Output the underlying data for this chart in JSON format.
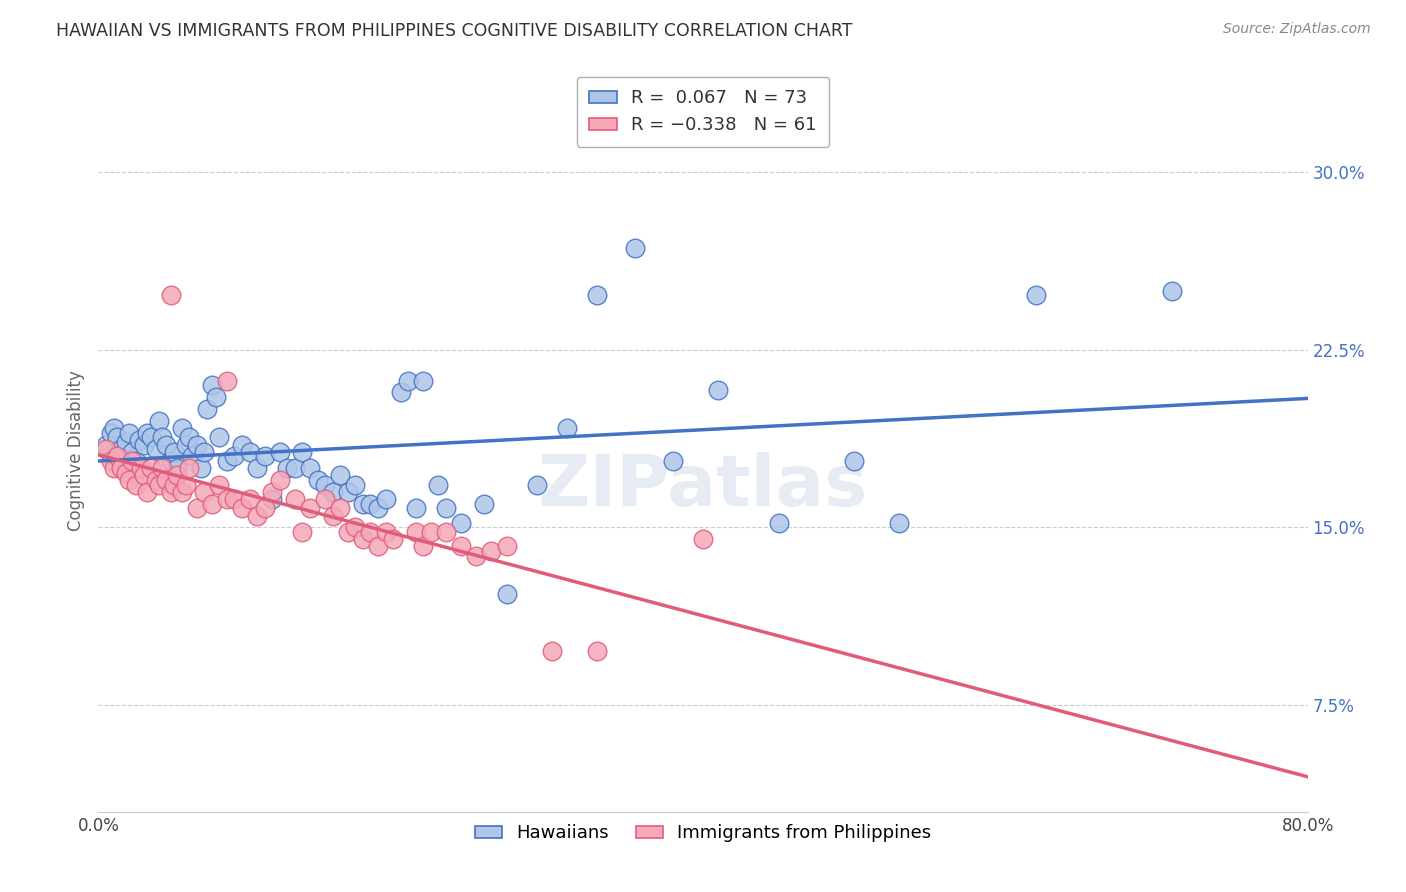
{
  "title": "HAWAIIAN VS IMMIGRANTS FROM PHILIPPINES COGNITIVE DISABILITY CORRELATION CHART",
  "source": "Source: ZipAtlas.com",
  "ylabel": "Cognitive Disability",
  "r_hawaiian": 0.067,
  "n_hawaiian": 73,
  "r_philippines": -0.338,
  "n_philippines": 61,
  "legend_label1": "Hawaiians",
  "legend_label2": "Immigrants from Philippines",
  "hawaiian_color": "#aec6e8",
  "philippines_color": "#f4a8b8",
  "hawaiian_line_color": "#4472C4",
  "philippines_line_color": "#E05C7A",
  "watermark": "ZIPatlas",
  "background_color": "#ffffff",
  "xlim": [
    0.0,
    0.8
  ],
  "ylim": [
    0.03,
    0.335
  ],
  "yticks": [
    0.075,
    0.15,
    0.225,
    0.3
  ],
  "ytick_labels": [
    "7.5%",
    "15.0%",
    "22.5%",
    "30.0%"
  ],
  "hawaiian_points_x": [
    0.005,
    0.008,
    0.01,
    0.012,
    0.015,
    0.018,
    0.02,
    0.022,
    0.025,
    0.027,
    0.03,
    0.032,
    0.035,
    0.038,
    0.04,
    0.042,
    0.045,
    0.048,
    0.05,
    0.052,
    0.055,
    0.058,
    0.06,
    0.062,
    0.065,
    0.068,
    0.07,
    0.072,
    0.075,
    0.078,
    0.08,
    0.085,
    0.09,
    0.095,
    0.1,
    0.105,
    0.11,
    0.115,
    0.12,
    0.125,
    0.13,
    0.135,
    0.14,
    0.145,
    0.15,
    0.155,
    0.16,
    0.165,
    0.17,
    0.175,
    0.18,
    0.185,
    0.19,
    0.2,
    0.205,
    0.21,
    0.215,
    0.225,
    0.23,
    0.24,
    0.255,
    0.27,
    0.29,
    0.31,
    0.33,
    0.355,
    0.38,
    0.41,
    0.45,
    0.5,
    0.53,
    0.62,
    0.71
  ],
  "hawaiian_points_y": [
    0.185,
    0.19,
    0.192,
    0.188,
    0.183,
    0.186,
    0.19,
    0.182,
    0.178,
    0.187,
    0.185,
    0.19,
    0.188,
    0.183,
    0.195,
    0.188,
    0.185,
    0.178,
    0.182,
    0.175,
    0.192,
    0.185,
    0.188,
    0.18,
    0.185,
    0.175,
    0.182,
    0.2,
    0.21,
    0.205,
    0.188,
    0.178,
    0.18,
    0.185,
    0.182,
    0.175,
    0.18,
    0.162,
    0.182,
    0.175,
    0.175,
    0.182,
    0.175,
    0.17,
    0.168,
    0.165,
    0.172,
    0.165,
    0.168,
    0.16,
    0.16,
    0.158,
    0.162,
    0.207,
    0.212,
    0.158,
    0.212,
    0.168,
    0.158,
    0.152,
    0.16,
    0.122,
    0.168,
    0.192,
    0.248,
    0.268,
    0.178,
    0.208,
    0.152,
    0.178,
    0.152,
    0.248,
    0.25
  ],
  "philippines_points_x": [
    0.005,
    0.008,
    0.01,
    0.012,
    0.015,
    0.018,
    0.02,
    0.022,
    0.025,
    0.028,
    0.03,
    0.032,
    0.035,
    0.038,
    0.04,
    0.042,
    0.045,
    0.048,
    0.05,
    0.052,
    0.055,
    0.058,
    0.06,
    0.065,
    0.07,
    0.075,
    0.08,
    0.085,
    0.09,
    0.095,
    0.048,
    0.085,
    0.1,
    0.105,
    0.11,
    0.115,
    0.12,
    0.13,
    0.135,
    0.14,
    0.15,
    0.155,
    0.16,
    0.165,
    0.17,
    0.175,
    0.18,
    0.185,
    0.19,
    0.195,
    0.21,
    0.215,
    0.22,
    0.23,
    0.24,
    0.25,
    0.26,
    0.27,
    0.3,
    0.33,
    0.4
  ],
  "philippines_points_y": [
    0.183,
    0.178,
    0.175,
    0.18,
    0.175,
    0.173,
    0.17,
    0.178,
    0.168,
    0.175,
    0.172,
    0.165,
    0.175,
    0.17,
    0.168,
    0.175,
    0.17,
    0.165,
    0.168,
    0.172,
    0.165,
    0.168,
    0.175,
    0.158,
    0.165,
    0.16,
    0.168,
    0.162,
    0.162,
    0.158,
    0.248,
    0.212,
    0.162,
    0.155,
    0.158,
    0.165,
    0.17,
    0.162,
    0.148,
    0.158,
    0.162,
    0.155,
    0.158,
    0.148,
    0.15,
    0.145,
    0.148,
    0.142,
    0.148,
    0.145,
    0.148,
    0.142,
    0.148,
    0.148,
    0.142,
    0.138,
    0.14,
    0.142,
    0.098,
    0.098,
    0.145
  ]
}
